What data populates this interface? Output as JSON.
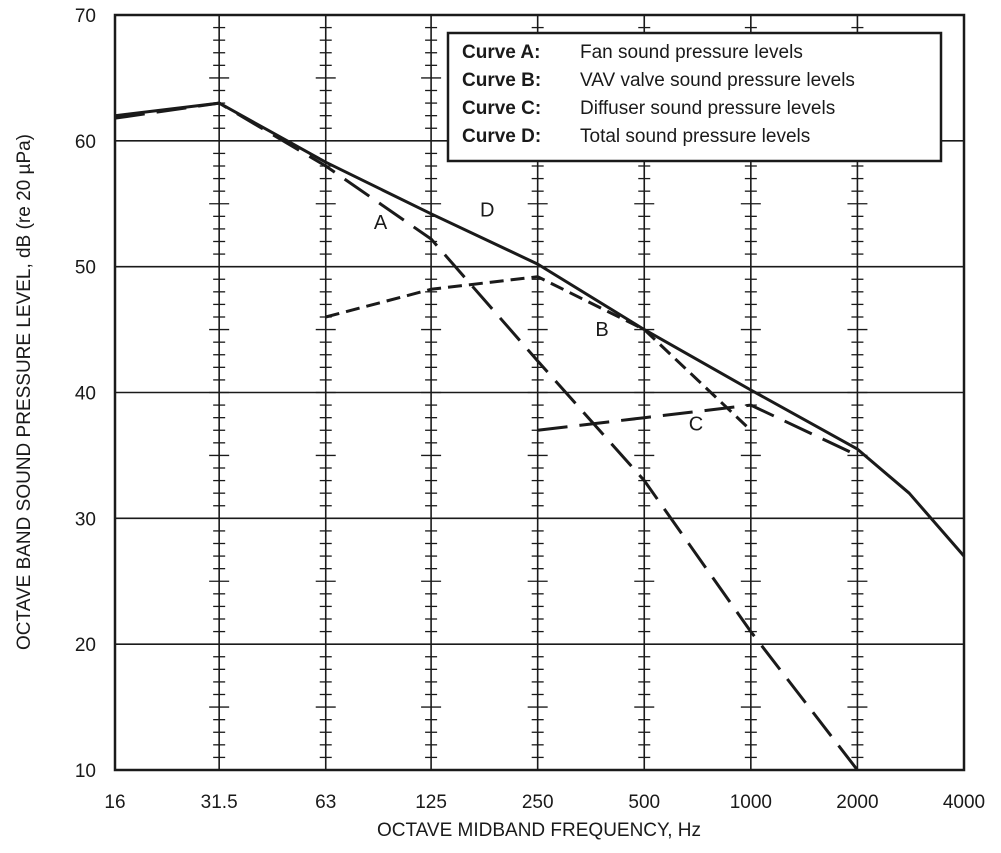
{
  "chart_data": {
    "type": "line",
    "xlabel": "OCTAVE MIDBAND FREQUENCY, Hz",
    "ylabel": "OCTAVE BAND SOUND PRESSURE LEVEL, dB (re 20 µPa)",
    "x_scale": "log2",
    "x_ticks": [
      "16",
      "31.5",
      "63",
      "125",
      "250",
      "500",
      "1000",
      "2000",
      "4000"
    ],
    "x_tick_values": [
      16,
      31.5,
      63,
      125,
      250,
      500,
      1000,
      2000,
      4000
    ],
    "y_ticks": [
      "10",
      "20",
      "30",
      "40",
      "50",
      "60",
      "70"
    ],
    "ylim": [
      10,
      70
    ],
    "xlim": [
      16,
      4000
    ],
    "grid": true,
    "legend_position": "top-right",
    "legend": [
      {
        "key": "Curve A:",
        "text": "Fan sound pressure levels"
      },
      {
        "key": "Curve B:",
        "text": "VAV valve sound pressure levels"
      },
      {
        "key": "Curve C:",
        "text": "Diffuser sound pressure levels"
      },
      {
        "key": "Curve D:",
        "text": "Total sound pressure levels"
      }
    ],
    "series": [
      {
        "label": "A",
        "style": "long-dash",
        "points": [
          [
            16,
            61.8
          ],
          [
            31.5,
            63
          ],
          [
            63,
            58
          ],
          [
            125,
            52.2
          ],
          [
            250,
            42.5
          ],
          [
            500,
            33
          ],
          [
            1000,
            21
          ],
          [
            2000,
            10
          ]
        ]
      },
      {
        "label": "B",
        "style": "dash",
        "points": [
          [
            63,
            46
          ],
          [
            125,
            48.2
          ],
          [
            250,
            49.2
          ],
          [
            500,
            45
          ],
          [
            1000,
            37
          ]
        ]
      },
      {
        "label": "C",
        "style": "long-dash",
        "points": [
          [
            250,
            37
          ],
          [
            500,
            38
          ],
          [
            1000,
            39
          ],
          [
            2000,
            35
          ]
        ]
      },
      {
        "label": "D",
        "style": "solid",
        "points": [
          [
            16,
            62
          ],
          [
            31.5,
            63
          ],
          [
            63,
            58.3
          ],
          [
            125,
            54.2
          ],
          [
            250,
            50.2
          ],
          [
            500,
            45
          ],
          [
            1000,
            40.2
          ],
          [
            2000,
            35.5
          ],
          [
            2800,
            32
          ],
          [
            4000,
            27
          ]
        ]
      }
    ],
    "curve_labels": [
      {
        "text": "A",
        "x": 90,
        "y": 53
      },
      {
        "text": "B",
        "x": 380,
        "y": 44.5
      },
      {
        "text": "C",
        "x": 700,
        "y": 37
      },
      {
        "text": "D",
        "x": 180,
        "y": 54
      }
    ]
  }
}
